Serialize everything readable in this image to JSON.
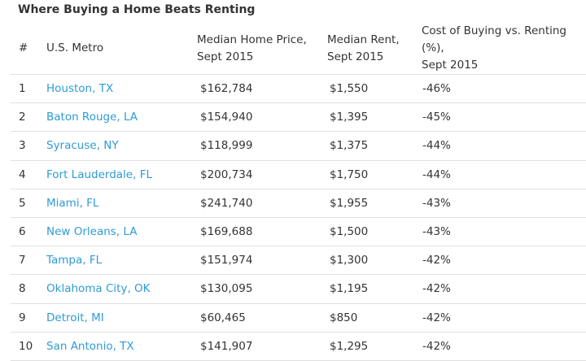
{
  "title": "Where Buying a Home Beats Renting",
  "headers": {
    "rank": "#",
    "metro": "U.S. Metro",
    "price_line1": "Median Home Price,",
    "price_line2": "Sept 2015",
    "rent_line1": "Median Rent,",
    "rent_line2": "Sept 2015",
    "cost_line1": "Cost of Buying vs. Renting (%),",
    "cost_line2": "Sept 2015"
  },
  "colors": {
    "link": "#2f9bd6",
    "text": "#333333",
    "divider": "#e0e0e0"
  },
  "rows": [
    {
      "rank": "1",
      "metro": "Houston, TX",
      "price": "$162,784",
      "rent": "$1,550",
      "cost": "-46%"
    },
    {
      "rank": "2",
      "metro": "Baton Rouge, LA",
      "price": "$154,940",
      "rent": "$1,395",
      "cost": "-45%"
    },
    {
      "rank": "3",
      "metro": "Syracuse, NY",
      "price": "$118,999",
      "rent": "$1,375",
      "cost": "-44%"
    },
    {
      "rank": "4",
      "metro": "Fort Lauderdale, FL",
      "price": "$200,734",
      "rent": "$1,750",
      "cost": "-44%"
    },
    {
      "rank": "5",
      "metro": "Miami, FL",
      "price": "$241,740",
      "rent": "$1,955",
      "cost": "-43%"
    },
    {
      "rank": "6",
      "metro": "New Orleans, LA",
      "price": "$169,688",
      "rent": "$1,500",
      "cost": "-43%"
    },
    {
      "rank": "7",
      "metro": "Tampa, FL",
      "price": "$151,974",
      "rent": "$1,300",
      "cost": "-42%"
    },
    {
      "rank": "8",
      "metro": "Oklahoma City, OK",
      "price": "$130,095",
      "rent": "$1,195",
      "cost": "-42%"
    },
    {
      "rank": "9",
      "metro": "Detroit, MI",
      "price": "$60,465",
      "rent": "$850",
      "cost": "-42%"
    },
    {
      "rank": "10",
      "metro": "San Antonio, TX",
      "price": "$141,907",
      "rent": "$1,295",
      "cost": "-42%"
    }
  ]
}
